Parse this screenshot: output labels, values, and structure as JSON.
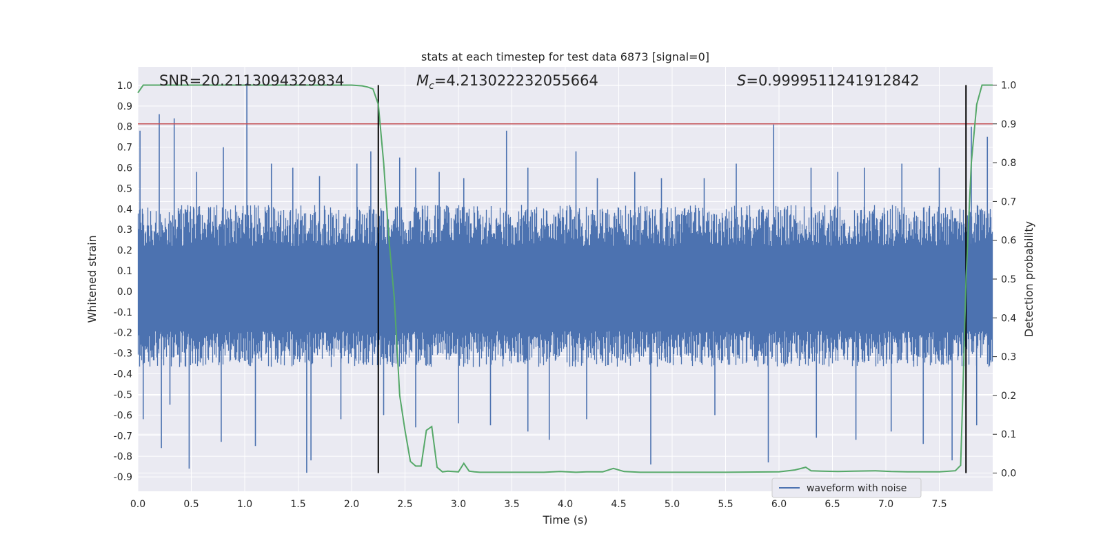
{
  "chart_data": {
    "type": "line",
    "title": "stats at each timestep for test data 6873 [signal=0]",
    "xlabel": "Time (s)",
    "ylabel_left": "Whitened strain",
    "ylabel_right": "Detection probability",
    "xlim": [
      0.0,
      8.0
    ],
    "ylim_left": [
      -0.97,
      1.09
    ],
    "ylim_right": [
      -0.047,
      1.047
    ],
    "x_ticks": [
      "0.0",
      "0.5",
      "1.0",
      "1.5",
      "2.0",
      "2.5",
      "3.0",
      "3.5",
      "4.0",
      "4.5",
      "5.0",
      "5.5",
      "6.0",
      "6.5",
      "7.0",
      "7.5"
    ],
    "y_left_ticks": [
      "1.0",
      "0.9",
      "0.8",
      "0.7",
      "0.6",
      "0.5",
      "0.4",
      "0.3",
      "0.2",
      "0.1",
      "0.0",
      "-0.1",
      "-0.2",
      "-0.3",
      "-0.4",
      "-0.5",
      "-0.6",
      "-0.7",
      "-0.8",
      "-0.9"
    ],
    "y_right_ticks": [
      "1.0",
      "0.9",
      "0.8",
      "0.7",
      "0.6",
      "0.5",
      "0.4",
      "0.3",
      "0.2",
      "0.1",
      "0.0"
    ],
    "annotations": {
      "snr": "SNR=20.2113094329834",
      "mc_value": "=4.213022232055664",
      "s_value": "=0.9999511241912842"
    },
    "legend": {
      "label": "waveform with noise",
      "position": "lower-right"
    },
    "threshold_line": {
      "axis": "right",
      "value": 0.9,
      "color": "#c44e52"
    },
    "vertical_markers": [
      2.25,
      7.75
    ],
    "series": [
      {
        "name": "waveform with noise",
        "axis": "left",
        "color": "#4c72b0",
        "envelope": {
          "typical_max": 0.4,
          "typical_min": -0.35
        },
        "peaks_x": [
          0.02,
          0.2,
          0.34,
          0.55,
          0.8,
          1.02,
          1.25,
          1.45,
          1.7,
          2.05,
          2.18,
          2.45,
          2.6,
          2.82,
          3.05,
          3.45,
          3.65,
          4.1,
          4.3,
          4.65,
          4.9,
          5.3,
          5.6,
          5.95,
          6.3,
          6.55,
          6.8,
          7.15,
          7.5,
          7.8,
          7.95
        ],
        "peaks_y": [
          0.78,
          0.86,
          0.84,
          0.58,
          0.7,
          1.01,
          0.62,
          0.6,
          0.56,
          0.62,
          0.68,
          0.65,
          0.6,
          0.58,
          0.55,
          0.78,
          0.6,
          0.68,
          0.55,
          0.58,
          0.55,
          0.55,
          0.62,
          0.81,
          0.6,
          0.58,
          0.6,
          0.62,
          0.6,
          0.8,
          0.75
        ],
        "troughs_x": [
          0.05,
          0.22,
          0.3,
          0.48,
          0.78,
          1.1,
          1.58,
          1.62,
          1.9,
          2.3,
          2.6,
          3.0,
          3.3,
          3.65,
          3.85,
          4.2,
          4.8,
          5.4,
          5.9,
          6.35,
          6.72,
          7.05,
          7.35,
          7.62,
          7.85
        ],
        "troughs_y": [
          -0.62,
          -0.76,
          -0.55,
          -0.86,
          -0.73,
          -0.75,
          -0.88,
          -0.82,
          -0.62,
          -0.6,
          -0.66,
          -0.64,
          -0.65,
          -0.68,
          -0.72,
          -0.62,
          -0.84,
          -0.6,
          -0.83,
          -0.71,
          -0.72,
          -0.68,
          -0.74,
          -0.82,
          -0.65
        ]
      },
      {
        "name": "detection probability",
        "axis": "right",
        "color": "#55a868",
        "x": [
          0.0,
          0.05,
          0.1,
          0.2,
          0.5,
          1.0,
          1.5,
          1.9,
          2.0,
          2.1,
          2.15,
          2.2,
          2.25,
          2.3,
          2.35,
          2.4,
          2.45,
          2.5,
          2.55,
          2.6,
          2.65,
          2.7,
          2.75,
          2.8,
          2.85,
          2.9,
          3.0,
          3.05,
          3.1,
          3.15,
          3.2,
          3.3,
          3.5,
          3.8,
          3.95,
          4.1,
          4.2,
          4.35,
          4.45,
          4.55,
          4.7,
          5.0,
          5.5,
          6.0,
          6.15,
          6.25,
          6.3,
          6.4,
          6.55,
          6.7,
          6.9,
          7.05,
          7.2,
          7.5,
          7.65,
          7.7,
          7.72,
          7.75,
          7.8,
          7.85,
          7.9,
          7.95,
          8.0
        ],
        "y": [
          0.98,
          1.0,
          1.0,
          1.0,
          1.0,
          1.0,
          1.0,
          1.0,
          1.0,
          0.998,
          0.995,
          0.99,
          0.95,
          0.8,
          0.6,
          0.45,
          0.2,
          0.11,
          0.03,
          0.018,
          0.018,
          0.11,
          0.12,
          0.015,
          0.003,
          0.005,
          0.003,
          0.025,
          0.005,
          0.003,
          0.002,
          0.002,
          0.002,
          0.002,
          0.004,
          0.002,
          0.003,
          0.003,
          0.012,
          0.004,
          0.002,
          0.002,
          0.002,
          0.003,
          0.008,
          0.015,
          0.006,
          0.005,
          0.004,
          0.005,
          0.006,
          0.004,
          0.003,
          0.003,
          0.006,
          0.02,
          0.2,
          0.5,
          0.8,
          0.95,
          1.0,
          1.0,
          1.0
        ]
      }
    ]
  }
}
